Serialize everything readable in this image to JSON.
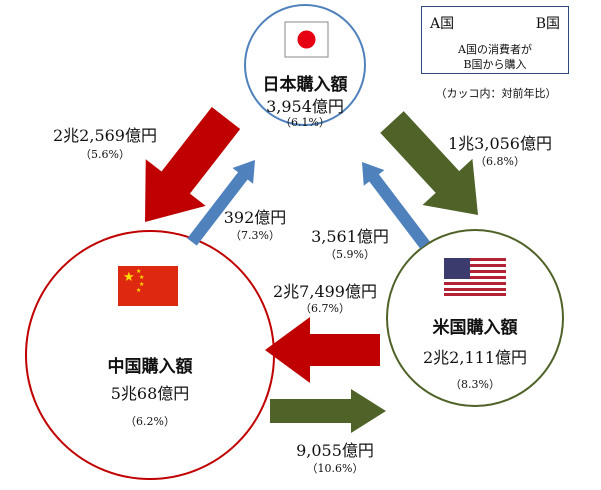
{
  "legend": {
    "a": "A国",
    "b": "B国",
    "desc1": "A国の消費者が",
    "desc2": "B国から購入",
    "note": "（カッコ内：対前年比）"
  },
  "japan": {
    "title": "日本購入額",
    "value": "3,954億円",
    "pct": "（6.1%）"
  },
  "china": {
    "title": "中国購入額",
    "value": "5兆68億円",
    "pct": "（6.2%）"
  },
  "usa": {
    "title": "米国購入額",
    "value": "2兆2,111億円",
    "pct": "（8.3%）"
  },
  "flows": {
    "japan_to_china": {
      "value": "2兆2,569億円",
      "pct": "（5.6%）"
    },
    "china_to_japan": {
      "value": "392億円",
      "pct": "（7.3%）"
    },
    "japan_to_usa": {
      "value": "1兆3,056億円",
      "pct": "（6.8%）"
    },
    "usa_to_japan": {
      "value": "3,561億円",
      "pct": "（5.9%）"
    },
    "usa_to_china": {
      "value": "2兆7,499億円",
      "pct": "（6.7%）"
    },
    "china_to_usa": {
      "value": "9,055億円",
      "pct": "（10.6%）"
    }
  },
  "colors": {
    "red": "#c00000",
    "olive": "#4f6228",
    "blue": "#4f81bd",
    "japan_circle": "#4f81bd",
    "china_circle": "#c00000",
    "usa_circle": "#4f6228"
  }
}
